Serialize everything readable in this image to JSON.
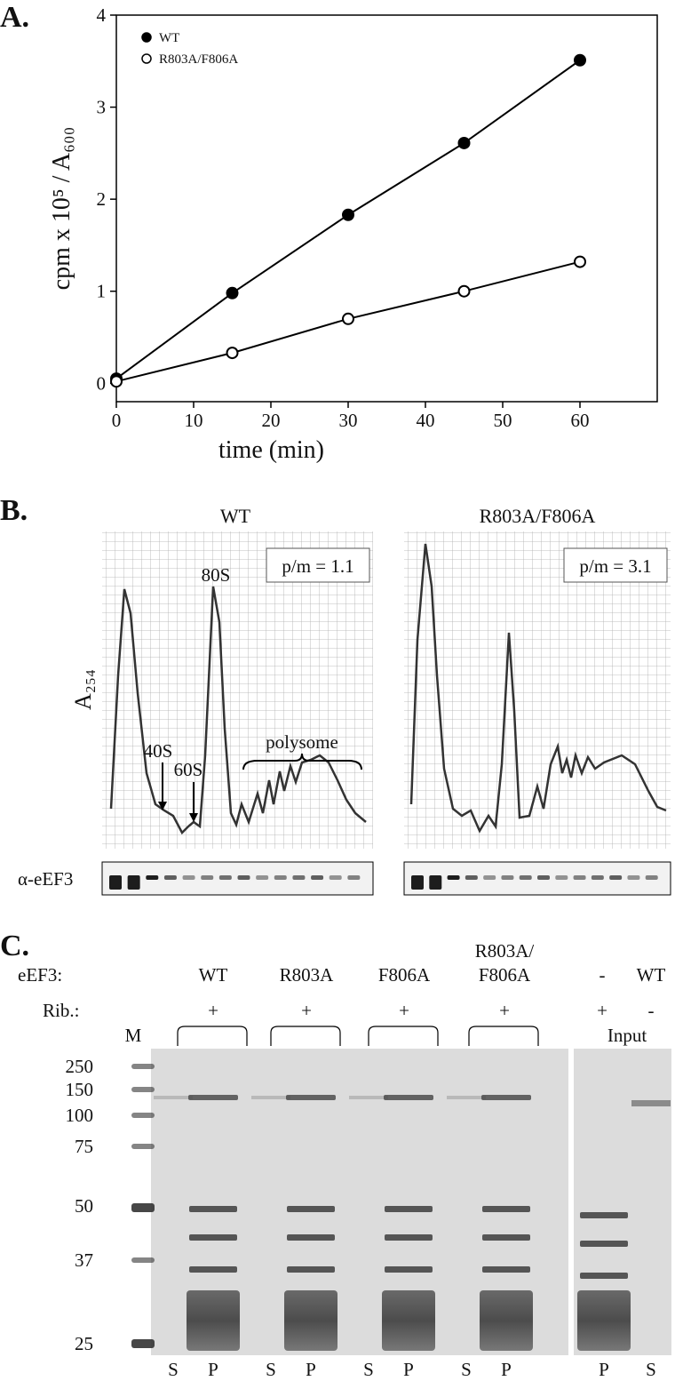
{
  "panel_labels": [
    "A.",
    "B.",
    "C."
  ],
  "chart_data": {
    "type": "line",
    "x_label": "time (min)",
    "y_label": "cpm x 10⁵ / A₆₀₀",
    "x": [
      0,
      15,
      30,
      45,
      60
    ],
    "series": [
      {
        "name": "WT",
        "color": "#000000",
        "marker": "filled",
        "values": [
          0.05,
          0.98,
          1.83,
          2.61,
          3.51
        ]
      },
      {
        "name": "R803A/F806A",
        "color": "#000000",
        "marker": "open",
        "values": [
          0.02,
          0.33,
          0.7,
          1.0,
          1.32
        ]
      }
    ],
    "xlim": [
      0,
      70
    ],
    "ylim": [
      -0.2,
      4
    ],
    "xticks": [
      0,
      10,
      20,
      30,
      40,
      50,
      60
    ],
    "yticks": [
      0,
      1,
      2,
      3,
      4
    ],
    "legend": "upper left"
  },
  "panel_b": {
    "profiles": [
      {
        "title": "WT",
        "ratio": "p/m = 1.1"
      },
      {
        "title": "R803A/F806A",
        "ratio": "p/m = 3.1"
      }
    ],
    "y_label": "A₂₅₄",
    "peaks": [
      "40S",
      "60S",
      "80S"
    ],
    "polysome": "polysome",
    "blot_label": "α-eEF3"
  },
  "panel_c": {
    "row_labels": [
      "eEF3:",
      "Rib.:"
    ],
    "samples": [
      {
        "eef3": [
          "WT"
        ],
        "rib": "+"
      },
      {
        "eef3": [
          "R803A"
        ],
        "rib": "+"
      },
      {
        "eef3": [
          "F806A"
        ],
        "rib": "+"
      },
      {
        "eef3": [
          "R803A/",
          "F806A"
        ],
        "rib": "+"
      },
      {
        "eef3": [
          "-"
        ],
        "rib": "+"
      },
      {
        "eef3": [
          "WT"
        ],
        "rib": "-"
      }
    ],
    "marker_lane": "M",
    "input_label": "Input",
    "markers": [
      250,
      150,
      100,
      75,
      50,
      37,
      25
    ],
    "lanes": [
      "S",
      "P",
      "S",
      "P",
      "S",
      "P",
      "S",
      "P",
      "P",
      "S"
    ]
  }
}
